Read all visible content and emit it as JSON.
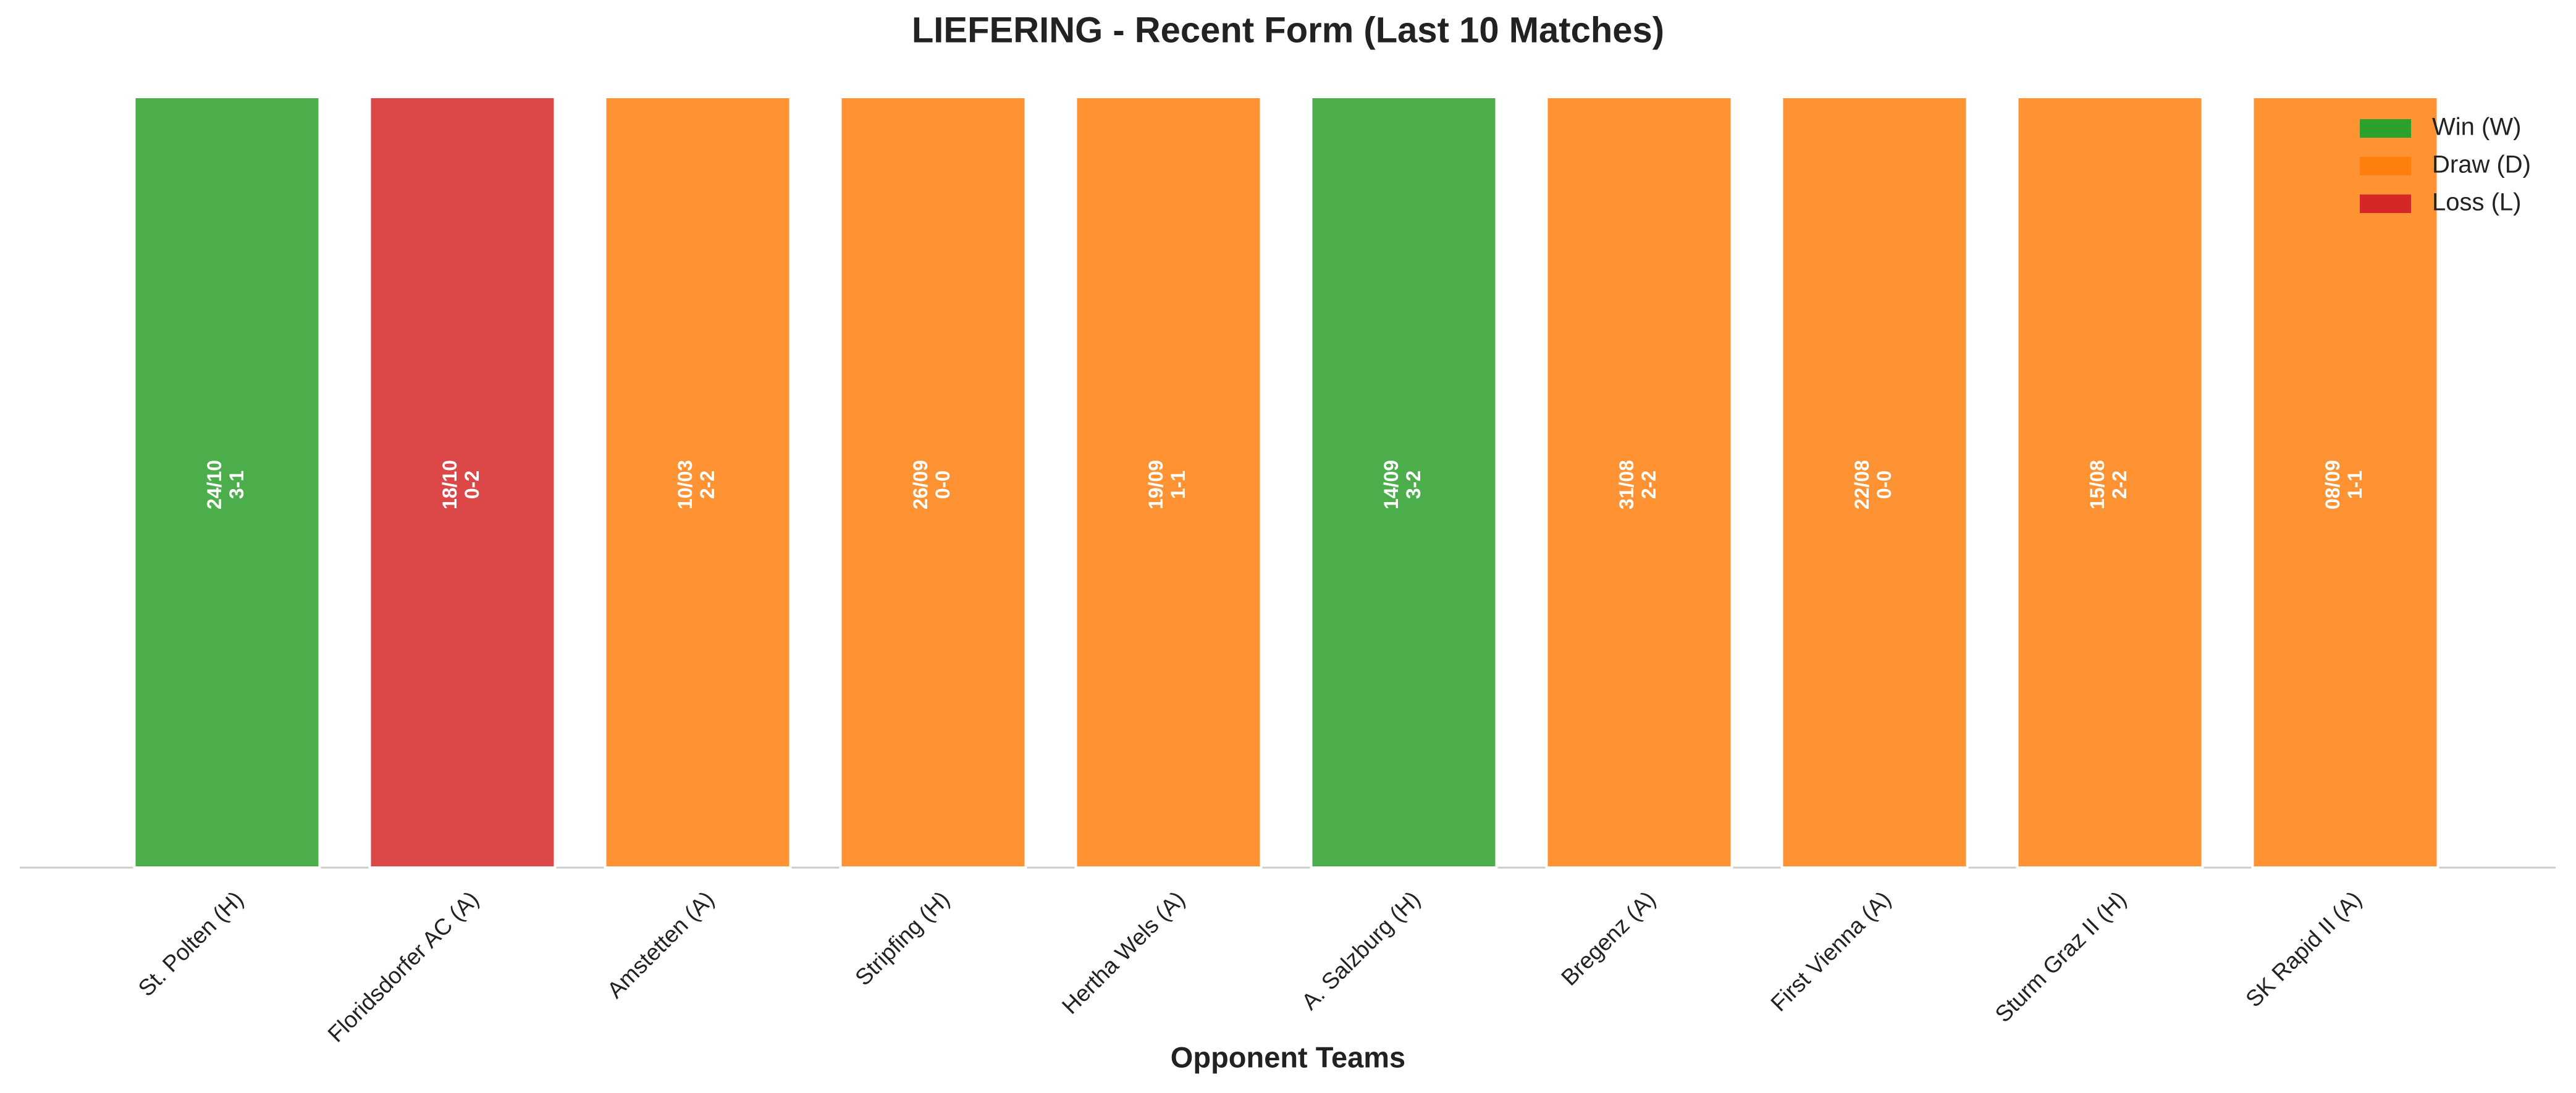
{
  "chart_data": {
    "type": "bar",
    "title": "LIEFERING - Recent Form (Last 10 Matches)",
    "x_label": "Opponent Teams",
    "categories": [
      "St. Polten (H)",
      "Floridsdorfer AC (A)",
      "Amstetten (A)",
      "Stripfing (H)",
      "Hertha Wels (A)",
      "A. Salzburg (H)",
      "Bregenz (A)",
      "First Vienna (A)",
      "Sturm Graz II (H)",
      "SK Rapid II (A)"
    ],
    "dates": [
      "24/10",
      "18/10",
      "10/03",
      "26/09",
      "19/09",
      "14/09",
      "31/08",
      "22/08",
      "15/08",
      "08/09"
    ],
    "scores": [
      "3-1",
      "0-2",
      "2-2",
      "0-0",
      "1-1",
      "3-2",
      "2-2",
      "0-0",
      "2-2",
      "1-1"
    ],
    "series": [
      {
        "name": "Win (W)",
        "color": "#2ca02c",
        "values": [
          1,
          null,
          null,
          null,
          null,
          1,
          null,
          null,
          null,
          null
        ]
      },
      {
        "name": "Draw (D)",
        "color": "#ff7f0e",
        "values": [
          null,
          null,
          1,
          1,
          1,
          null,
          1,
          1,
          1,
          1
        ]
      },
      {
        "name": "Loss (L)",
        "color": "#d62728",
        "values": [
          null,
          1,
          null,
          null,
          null,
          null,
          null,
          null,
          null,
          null
        ]
      }
    ],
    "ylim": [
      0,
      1
    ],
    "legend": "upper right"
  }
}
